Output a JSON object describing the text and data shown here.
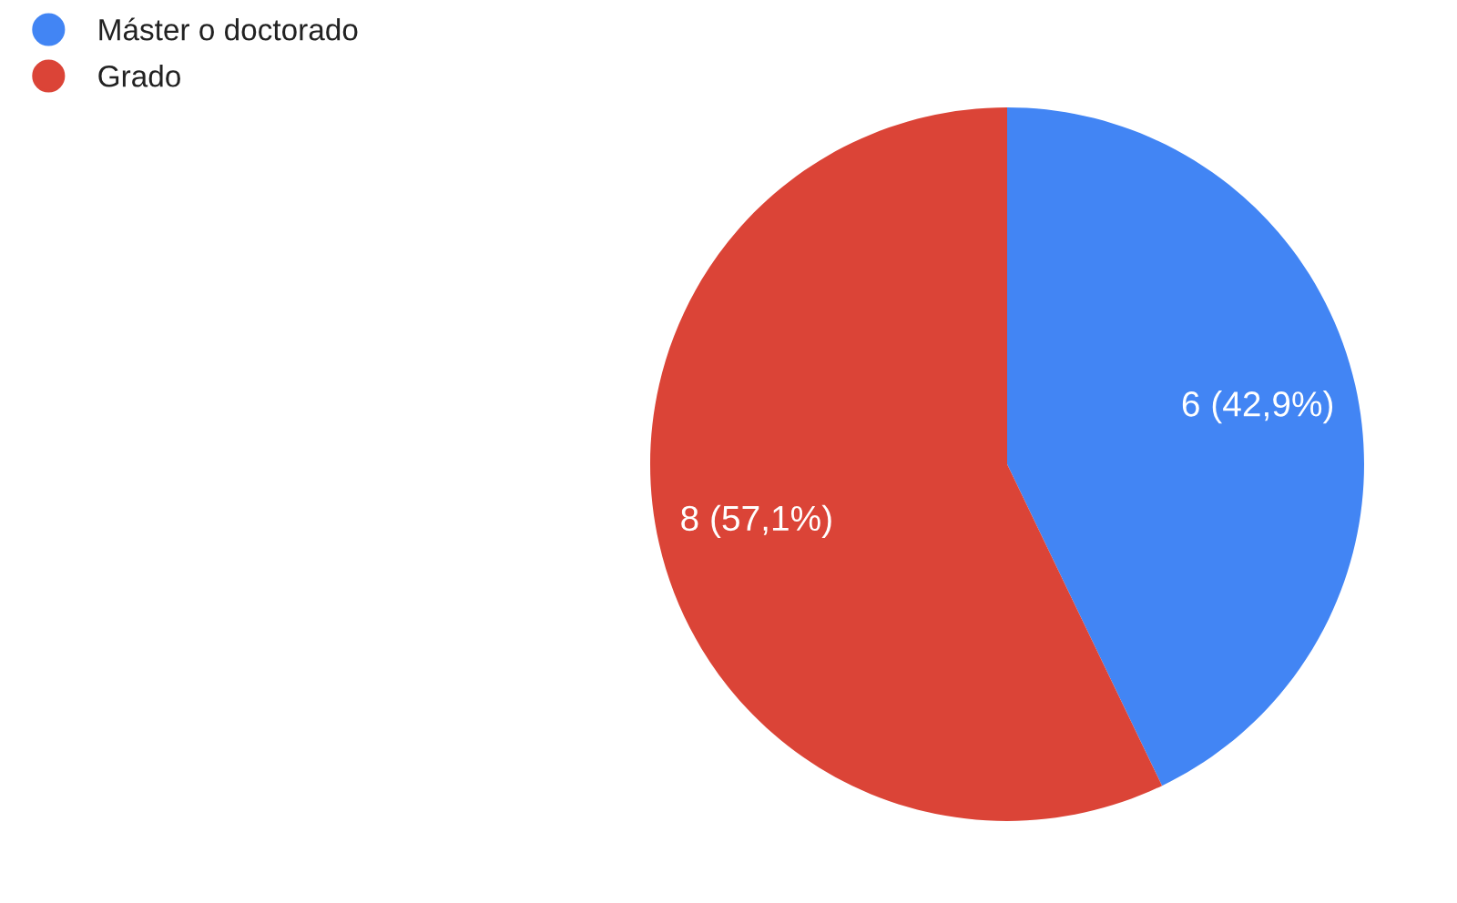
{
  "chart_data": {
    "type": "pie",
    "categories": [
      "Máster o doctorado",
      "Grado"
    ],
    "values": [
      6,
      8
    ],
    "colors": [
      "#4285f4",
      "#db4437"
    ],
    "value_labels": [
      "6 (42,9%)",
      "8 (57,1%)"
    ],
    "legend": "top left"
  }
}
